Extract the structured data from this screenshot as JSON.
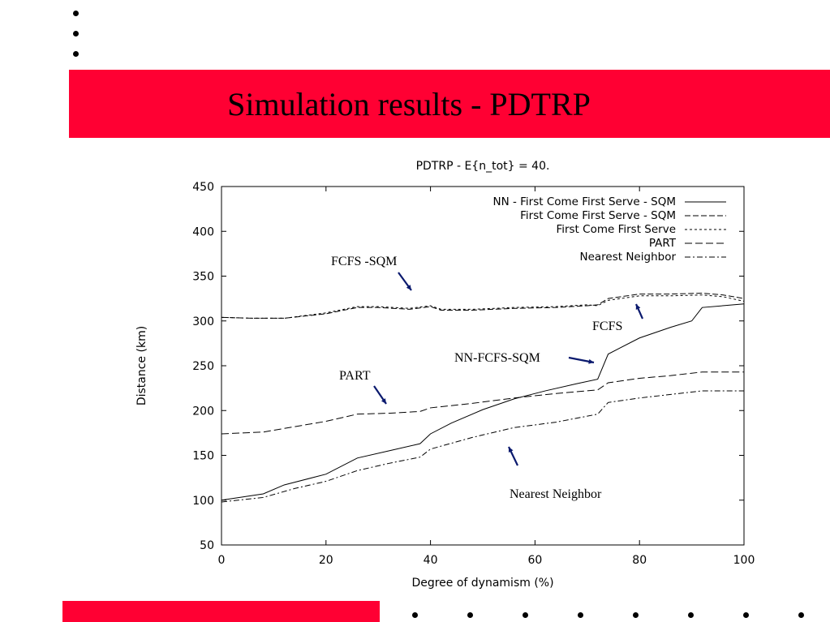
{
  "slide": {
    "title": "Simulation results - PDTRP"
  },
  "chart_data": {
    "type": "line",
    "title": "PDTRP - E{n_tot} = 40.",
    "xlabel": "Degree of dynamism (%)",
    "ylabel": "Distance (km)",
    "xlim": [
      0,
      100
    ],
    "ylim": [
      50,
      450
    ],
    "xticks": [
      0,
      20,
      40,
      60,
      80,
      100
    ],
    "yticks": [
      50,
      100,
      150,
      200,
      250,
      300,
      350,
      400,
      450
    ],
    "legend_position": "top-right",
    "series": [
      {
        "name": "NN - First Come First Serve - SQM",
        "style": "solid",
        "x": [
          0,
          8,
          12,
          20,
          26,
          32,
          38,
          40,
          44,
          50,
          56,
          62,
          68,
          72,
          74,
          80,
          86,
          90,
          92,
          100
        ],
        "y": [
          100,
          107,
          117,
          129,
          147,
          155,
          163,
          174,
          186,
          201,
          213,
          222,
          230,
          235,
          263,
          281,
          293,
          300,
          315,
          319
        ]
      },
      {
        "name": "First Come First Serve - SQM",
        "style": "dash",
        "x": [
          0,
          6,
          12,
          20,
          26,
          30,
          36,
          40,
          42,
          48,
          56,
          64,
          70,
          72,
          74,
          80,
          86,
          92,
          96,
          100
        ],
        "y": [
          304,
          303,
          303,
          308,
          315,
          315,
          313,
          316,
          312,
          312,
          314,
          315,
          317,
          318,
          325,
          330,
          330,
          331,
          329,
          325
        ]
      },
      {
        "name": "First Come First Serve",
        "style": "fine-dash",
        "x": [
          0,
          6,
          12,
          20,
          26,
          30,
          36,
          40,
          42,
          48,
          56,
          64,
          70,
          72,
          74,
          80,
          86,
          92,
          96,
          100
        ],
        "y": [
          304,
          303,
          303,
          309,
          316,
          316,
          314,
          317,
          313,
          313,
          315,
          316,
          318,
          317,
          323,
          328,
          328,
          329,
          327,
          322
        ]
      },
      {
        "name": "PART",
        "style": "long-dash",
        "x": [
          0,
          8,
          14,
          20,
          26,
          32,
          38,
          40,
          48,
          56,
          64,
          72,
          74,
          80,
          86,
          92,
          100
        ],
        "y": [
          174,
          176,
          182,
          188,
          196,
          197,
          199,
          203,
          208,
          214,
          219,
          223,
          231,
          236,
          239,
          243,
          243
        ]
      },
      {
        "name": "Nearest Neighbor",
        "style": "dash-dot",
        "x": [
          0,
          8,
          14,
          20,
          26,
          32,
          38,
          40,
          48,
          56,
          64,
          72,
          74,
          80,
          86,
          92,
          100
        ],
        "y": [
          98,
          103,
          113,
          121,
          133,
          141,
          148,
          157,
          170,
          181,
          187,
          196,
          209,
          214,
          218,
          222,
          222
        ]
      }
    ],
    "annotations": [
      {
        "text": "FCFS -SQM"
      },
      {
        "text": "FCFS"
      },
      {
        "text": "NN-FCFS-SQM"
      },
      {
        "text": "PART"
      },
      {
        "text": "Nearest Neighbor"
      }
    ],
    "arrow_color": "#0b1a6e"
  }
}
